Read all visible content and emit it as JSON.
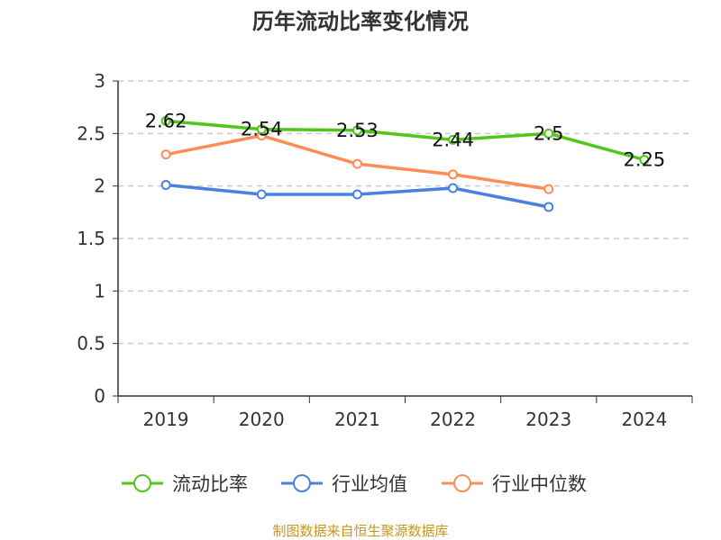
{
  "chart_data": {
    "type": "line",
    "title": "历年流动比率变化情况",
    "categories": [
      "2019",
      "2020",
      "2021",
      "2022",
      "2023",
      "2024"
    ],
    "ylim": [
      0,
      3
    ],
    "yticks": [
      "0",
      "0.5",
      "1",
      "1.5",
      "2",
      "2.5",
      "3"
    ],
    "grid": true,
    "legend_position": "bottom",
    "series": [
      {
        "name": "流动比率",
        "color": "#52c41a",
        "values": [
          2.62,
          2.54,
          2.53,
          2.44,
          2.5,
          2.25
        ],
        "labels": [
          "2.62",
          "2.54",
          "2.53",
          "2.44",
          "2.5",
          "2.25"
        ]
      },
      {
        "name": "行业均值",
        "color": "#4a80e0",
        "values": [
          2.01,
          1.92,
          1.92,
          1.98,
          1.8,
          null
        ]
      },
      {
        "name": "行业中位数",
        "color": "#ff8c55",
        "values": [
          2.3,
          2.48,
          2.21,
          2.11,
          1.97,
          null
        ]
      }
    ],
    "source": "制图数据来自恒生聚源数据库"
  }
}
